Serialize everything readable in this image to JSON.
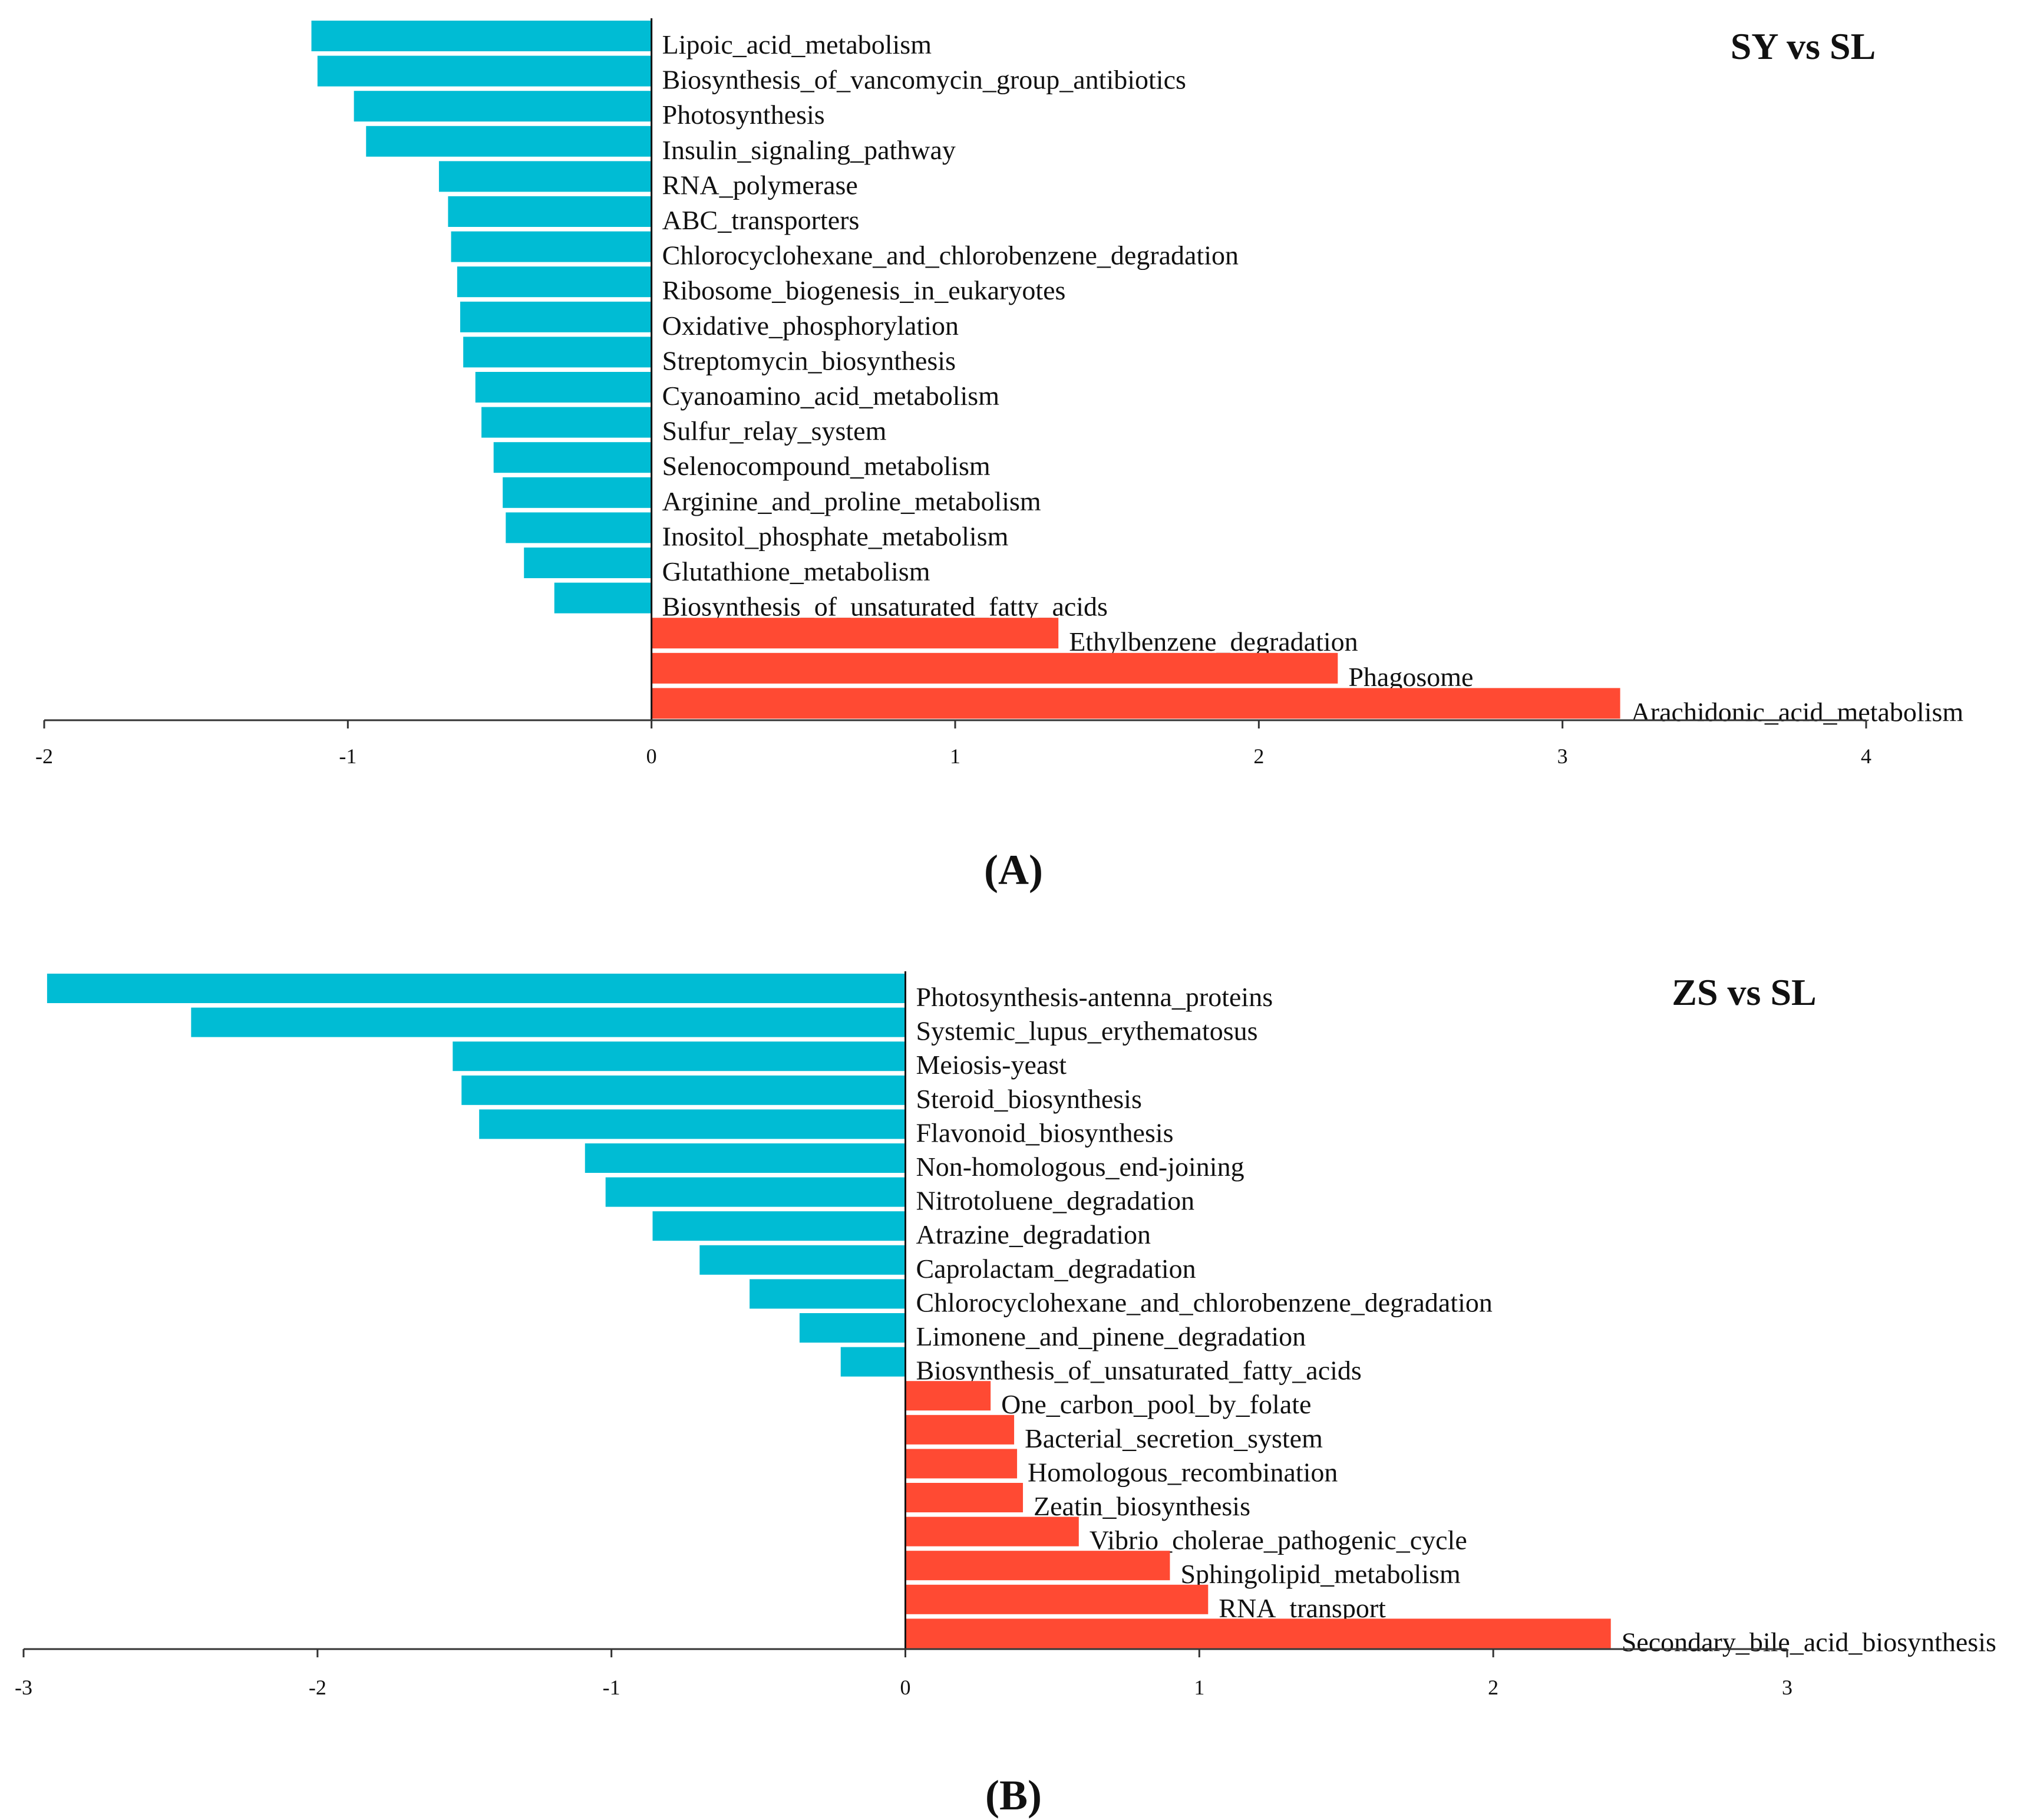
{
  "chart_data": [
    {
      "type": "bar",
      "orientation": "horizontal",
      "title": "SY vs SL",
      "panel_label": "(A)",
      "xlim": [
        -2,
        4
      ],
      "xticks": [
        -2,
        -1,
        0,
        1,
        2,
        3,
        4
      ],
      "negative_color": "#00BCD4",
      "positive_color": "#FF4A33",
      "categories": [
        "Lipoic_acid_metabolism",
        "Biosynthesis_of_vancomycin_group_antibiotics",
        "Photosynthesis",
        "Insulin_signaling_pathway",
        "RNA_polymerase",
        "ABC_transporters",
        "Chlorocyclohexane_and_chlorobenzene_degradation",
        "Ribosome_biogenesis_in_eukaryotes",
        "Oxidative_phosphorylation",
        "Streptomycin_biosynthesis",
        "Cyanoamino_acid_metabolism",
        "Sulfur_relay_system",
        "Selenocompound_metabolism",
        "Arginine_and_proline_metabolism",
        "Inositol_phosphate_metabolism",
        "Glutathione_metabolism",
        "Biosynthesis_of_unsaturated_fatty_acids",
        "Ethylbenzene_degradation",
        "Phagosome",
        "Arachidonic_acid_metabolism"
      ],
      "values": [
        -1.12,
        -1.1,
        -0.98,
        -0.94,
        -0.7,
        -0.67,
        -0.66,
        -0.64,
        -0.63,
        -0.62,
        -0.58,
        -0.56,
        -0.52,
        -0.49,
        -0.48,
        -0.42,
        -0.32,
        1.34,
        2.26,
        3.19
      ]
    },
    {
      "type": "bar",
      "orientation": "horizontal",
      "title": "ZS vs SL",
      "panel_label": "(B)",
      "xlim": [
        -3,
        3
      ],
      "xticks": [
        -3,
        -2,
        -1,
        0,
        1,
        2,
        3
      ],
      "negative_color": "#00BCD4",
      "positive_color": "#FF4A33",
      "categories": [
        "Photosynthesis-antenna_proteins",
        "Systemic_lupus_erythematosus",
        "Meiosis-yeast",
        "Steroid_biosynthesis",
        "Flavonoid_biosynthesis",
        "Non-homologous_end-joining",
        "Nitrotoluene_degradation",
        "Atrazine_degradation",
        "Caprolactam_degradation",
        "Chlorocyclohexane_and_chlorobenzene_degradation",
        "Limonene_and_pinene_degradation",
        "Biosynthesis_of_unsaturated_fatty_acids",
        "One_carbon_pool_by_folate",
        "Bacterial_secretion_system",
        "Homologous_recombination",
        "Zeatin_biosynthesis",
        "Vibrio_cholerae_pathogenic_cycle",
        "Sphingolipid_metabolism",
        "RNA_transport",
        "Secondary_bile_acid_biosynthesis"
      ],
      "values": [
        -2.92,
        -2.43,
        -1.54,
        -1.51,
        -1.45,
        -1.09,
        -1.02,
        -0.86,
        -0.7,
        -0.53,
        -0.36,
        -0.22,
        0.29,
        0.37,
        0.38,
        0.4,
        0.59,
        0.9,
        1.03,
        2.4
      ]
    }
  ]
}
